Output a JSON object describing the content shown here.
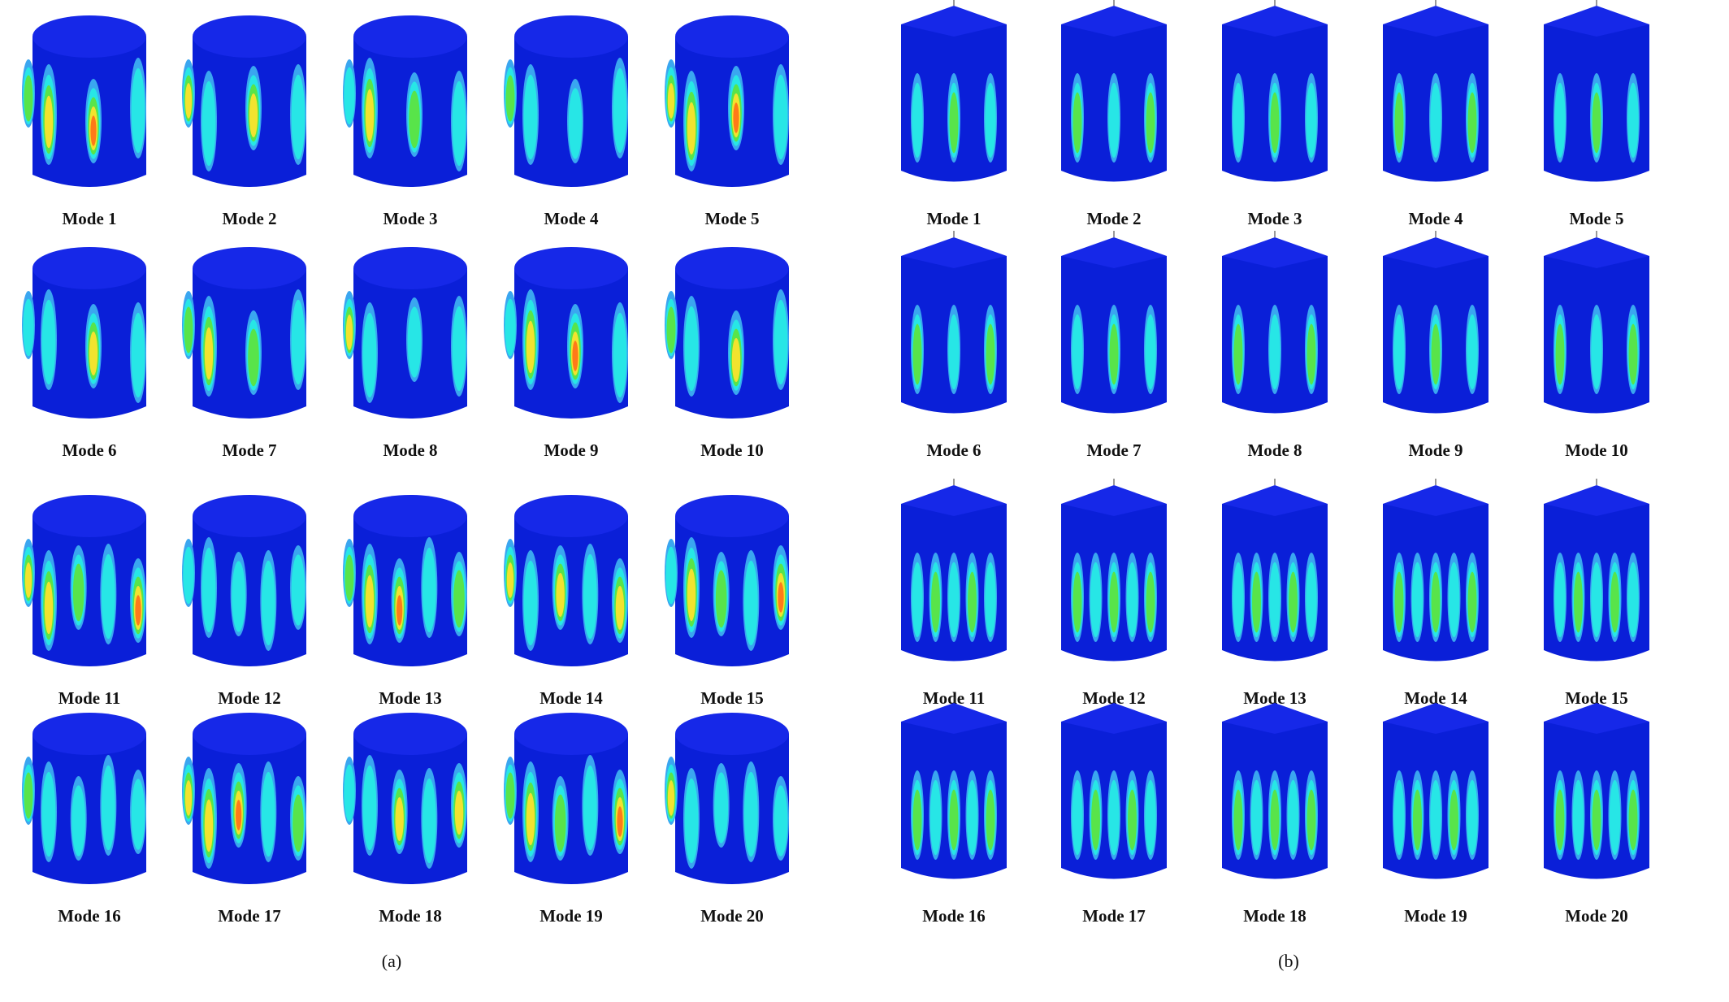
{
  "colors": {
    "body_blue": "#0a1fd8",
    "top_blue": "#1628e8",
    "contour_light": "#3aa6f0",
    "contour_cyan": "#27e6e6",
    "contour_green": "#58e44a",
    "contour_yellow": "#f2e32e",
    "contour_orange": "#ff7a18",
    "contour_red": "#d01818"
  },
  "panels": [
    {
      "id": "a",
      "caption": "(a)",
      "shape": "cylinder",
      "modes": [
        "Mode 1",
        "Mode 2",
        "Mode 3",
        "Mode 4",
        "Mode 5",
        "Mode 6",
        "Mode 7",
        "Mode 8",
        "Mode 9",
        "Mode 10",
        "Mode 11",
        "Mode 12",
        "Mode 13",
        "Mode 14",
        "Mode 15",
        "Mode 16",
        "Mode 17",
        "Mode 18",
        "Mode 19",
        "Mode 20"
      ]
    },
    {
      "id": "b",
      "caption": "(b)",
      "shape": "capped-cylinder",
      "modes": [
        "Mode 1",
        "Mode 2",
        "Mode 3",
        "Mode 4",
        "Mode 5",
        "Mode 6",
        "Mode 7",
        "Mode 8",
        "Mode 9",
        "Mode 10",
        "Mode 11",
        "Mode 12",
        "Mode 13",
        "Mode 14",
        "Mode 15",
        "Mode 16",
        "Mode 17",
        "Mode 18",
        "Mode 19",
        "Mode 20"
      ]
    }
  ]
}
